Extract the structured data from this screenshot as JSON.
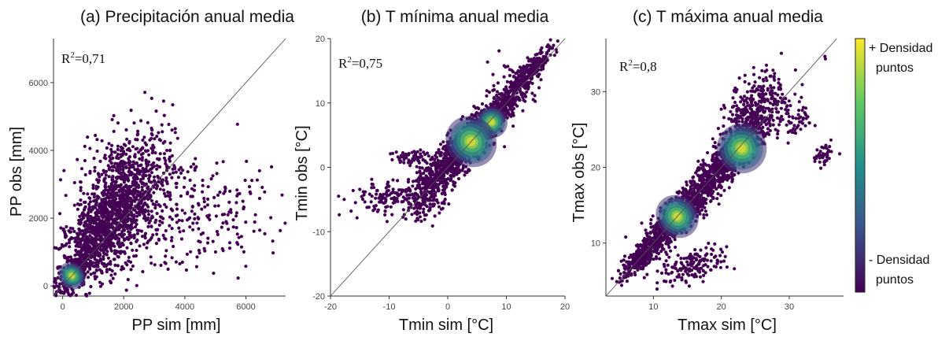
{
  "colorbar": {
    "top_label_1": "+ Densidad",
    "top_label_2": "puntos",
    "bottom_label_1": "- Densidad",
    "bottom_label_2": "puntos",
    "colors": [
      "#440154",
      "#3b528b",
      "#21918c",
      "#5ec962",
      "#fde725"
    ]
  },
  "chart_data": [
    {
      "type": "scatter",
      "title": "(a) Precipitación anual media",
      "xlabel": "PP sim [mm]",
      "ylabel": "PP obs [mm]",
      "r2_label": "R",
      "r2_sup": "2",
      "r2_value": "=0,71",
      "xlim": [
        -300,
        7300
      ],
      "ylim": [
        -300,
        7300
      ],
      "xticks": [
        0,
        2000,
        4000,
        6000
      ],
      "yticks": [
        0,
        2000,
        4000,
        6000
      ],
      "identity_line": true,
      "clusters": [
        {
          "cx": 400,
          "cy": 400,
          "sx": 300,
          "sy": 350,
          "rho": 0.8,
          "n": 200
        },
        {
          "cx": 1200,
          "cy": 1500,
          "sx": 700,
          "sy": 900,
          "rho": 0.7,
          "n": 800
        },
        {
          "cx": 2000,
          "cy": 2700,
          "sx": 800,
          "sy": 1000,
          "rho": 0.4,
          "n": 800
        },
        {
          "cx": 3500,
          "cy": 2000,
          "sx": 1400,
          "sy": 900,
          "rho": 0.3,
          "n": 250
        },
        {
          "cx": 5500,
          "cy": 2000,
          "sx": 1000,
          "sy": 800,
          "rho": 0.1,
          "n": 60
        }
      ],
      "hotspots": [
        [
          300,
          300,
          250,
          260
        ]
      ]
    },
    {
      "type": "scatter",
      "title": "(b) T mínima anual media",
      "xlabel": "Tmin sim [°C]",
      "ylabel": "Tmin obs [°C]",
      "r2_label": "R",
      "r2_sup": "2",
      "r2_value": "=0,75",
      "xlim": [
        -20,
        20
      ],
      "ylim": [
        -20,
        20
      ],
      "xticks": [
        -20,
        -10,
        0,
        10,
        20
      ],
      "yticks": [
        -20,
        -10,
        0,
        10,
        20
      ],
      "identity_line": true,
      "clusters": [
        {
          "cx": 6,
          "cy": 6,
          "sx": 3,
          "sy": 3,
          "rho": 0.9,
          "n": 1000
        },
        {
          "cx": 2,
          "cy": 2.5,
          "sx": 3,
          "sy": 3,
          "rho": 0.8,
          "n": 500
        },
        {
          "cx": 14,
          "cy": 15,
          "sx": 2,
          "sy": 2,
          "rho": 0.9,
          "n": 250
        },
        {
          "cx": -3,
          "cy": -3,
          "sx": 2,
          "sy": 2.5,
          "rho": 0.5,
          "n": 300
        },
        {
          "cx": -9,
          "cy": -4.5,
          "sx": 4,
          "sy": 1.2,
          "rho": 0.3,
          "n": 150
        },
        {
          "cx": -6,
          "cy": 1.5,
          "sx": 2,
          "sy": 0.7,
          "rho": 0,
          "n": 60
        },
        {
          "cx": 11,
          "cy": 13,
          "sx": 2,
          "sy": 2,
          "rho": 0.2,
          "n": 80
        }
      ],
      "hotspots": [
        [
          7.5,
          7,
          1.6,
          1.5
        ],
        [
          4,
          4,
          2.5,
          2.5
        ]
      ]
    },
    {
      "type": "scatter",
      "title": "(c) T máxima anual media",
      "xlabel": "Tmax sim [°C]",
      "ylabel": "Tmax obs [°C]",
      "r2_label": "R",
      "r2_sup": "2",
      "r2_value": "=0,8",
      "xlim": [
        3,
        38
      ],
      "ylim": [
        3,
        37
      ],
      "xticks": [
        10,
        20,
        30
      ],
      "yticks": [
        10,
        20,
        30
      ],
      "identity_line": true,
      "clusters": [
        {
          "cx": 21,
          "cy": 21,
          "sx": 4,
          "sy": 4,
          "rho": 0.92,
          "n": 900
        },
        {
          "cx": 13,
          "cy": 13,
          "sx": 3,
          "sy": 3,
          "rho": 0.9,
          "n": 700
        },
        {
          "cx": 8,
          "cy": 8,
          "sx": 1.3,
          "sy": 1.3,
          "rho": 0.8,
          "n": 200
        },
        {
          "cx": 25,
          "cy": 29,
          "sx": 2,
          "sy": 2,
          "rho": 0.5,
          "n": 200
        },
        {
          "cx": 16,
          "cy": 7,
          "sx": 2.5,
          "sy": 1.2,
          "rho": 0.5,
          "n": 160
        },
        {
          "cx": 35,
          "cy": 21.5,
          "sx": 0.8,
          "sy": 0.8,
          "rho": 0.5,
          "n": 40
        },
        {
          "cx": 31,
          "cy": 26,
          "sx": 1.3,
          "sy": 1.3,
          "rho": 0.3,
          "n": 50
        }
      ],
      "hotspots": [
        [
          23,
          22.5,
          2.2,
          2.0
        ],
        [
          13.5,
          13.5,
          1.8,
          1.8
        ]
      ]
    }
  ]
}
